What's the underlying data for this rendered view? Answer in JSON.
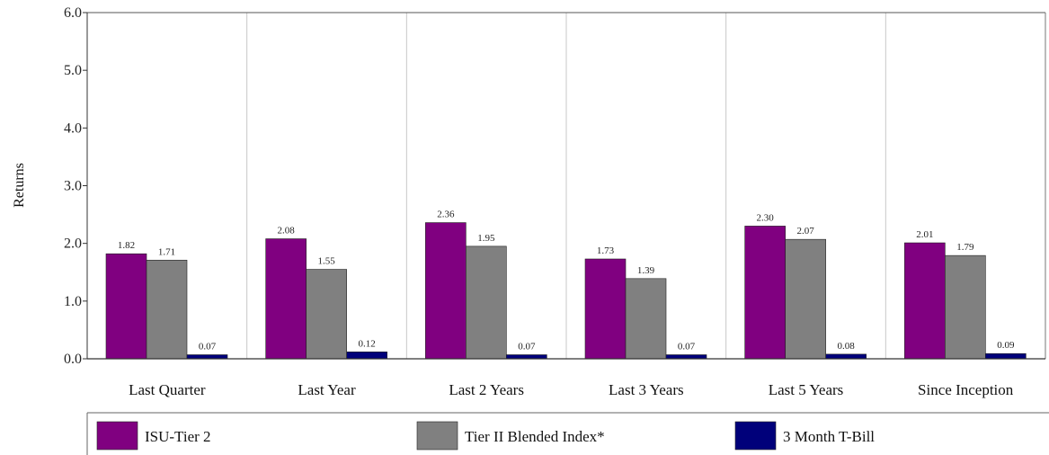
{
  "chart_data": {
    "type": "bar",
    "ylabel": "Returns",
    "ylim": [
      0,
      6
    ],
    "yticks": [
      "0.0",
      "1.0",
      "2.0",
      "3.0",
      "4.0",
      "5.0",
      "6.0"
    ],
    "categories": [
      "Last Quarter",
      "Last Year",
      "Last 2 Years",
      "Last 3 Years",
      "Last 5 Years",
      "Since Inception"
    ],
    "series": [
      {
        "name": "ISU-Tier 2",
        "color": "#800080",
        "values": [
          1.82,
          2.08,
          2.36,
          1.73,
          2.3,
          2.01
        ],
        "labels": [
          "1.82",
          "2.08",
          "2.36",
          "1.73",
          "2.30",
          "2.01"
        ]
      },
      {
        "name": "Tier II Blended Index*",
        "color": "#808080",
        "values": [
          1.71,
          1.55,
          1.95,
          1.39,
          2.07,
          1.79
        ],
        "labels": [
          "1.71",
          "1.55",
          "1.95",
          "1.39",
          "2.07",
          "1.79"
        ]
      },
      {
        "name": "3 Month T-Bill",
        "color": "#00007a",
        "values": [
          0.07,
          0.12,
          0.07,
          0.07,
          0.08,
          0.09
        ],
        "labels": [
          "0.07",
          "0.12",
          "0.07",
          "0.07",
          "0.08",
          "0.09"
        ]
      }
    ],
    "grid": "vertical-separators",
    "legend": "bottom"
  }
}
